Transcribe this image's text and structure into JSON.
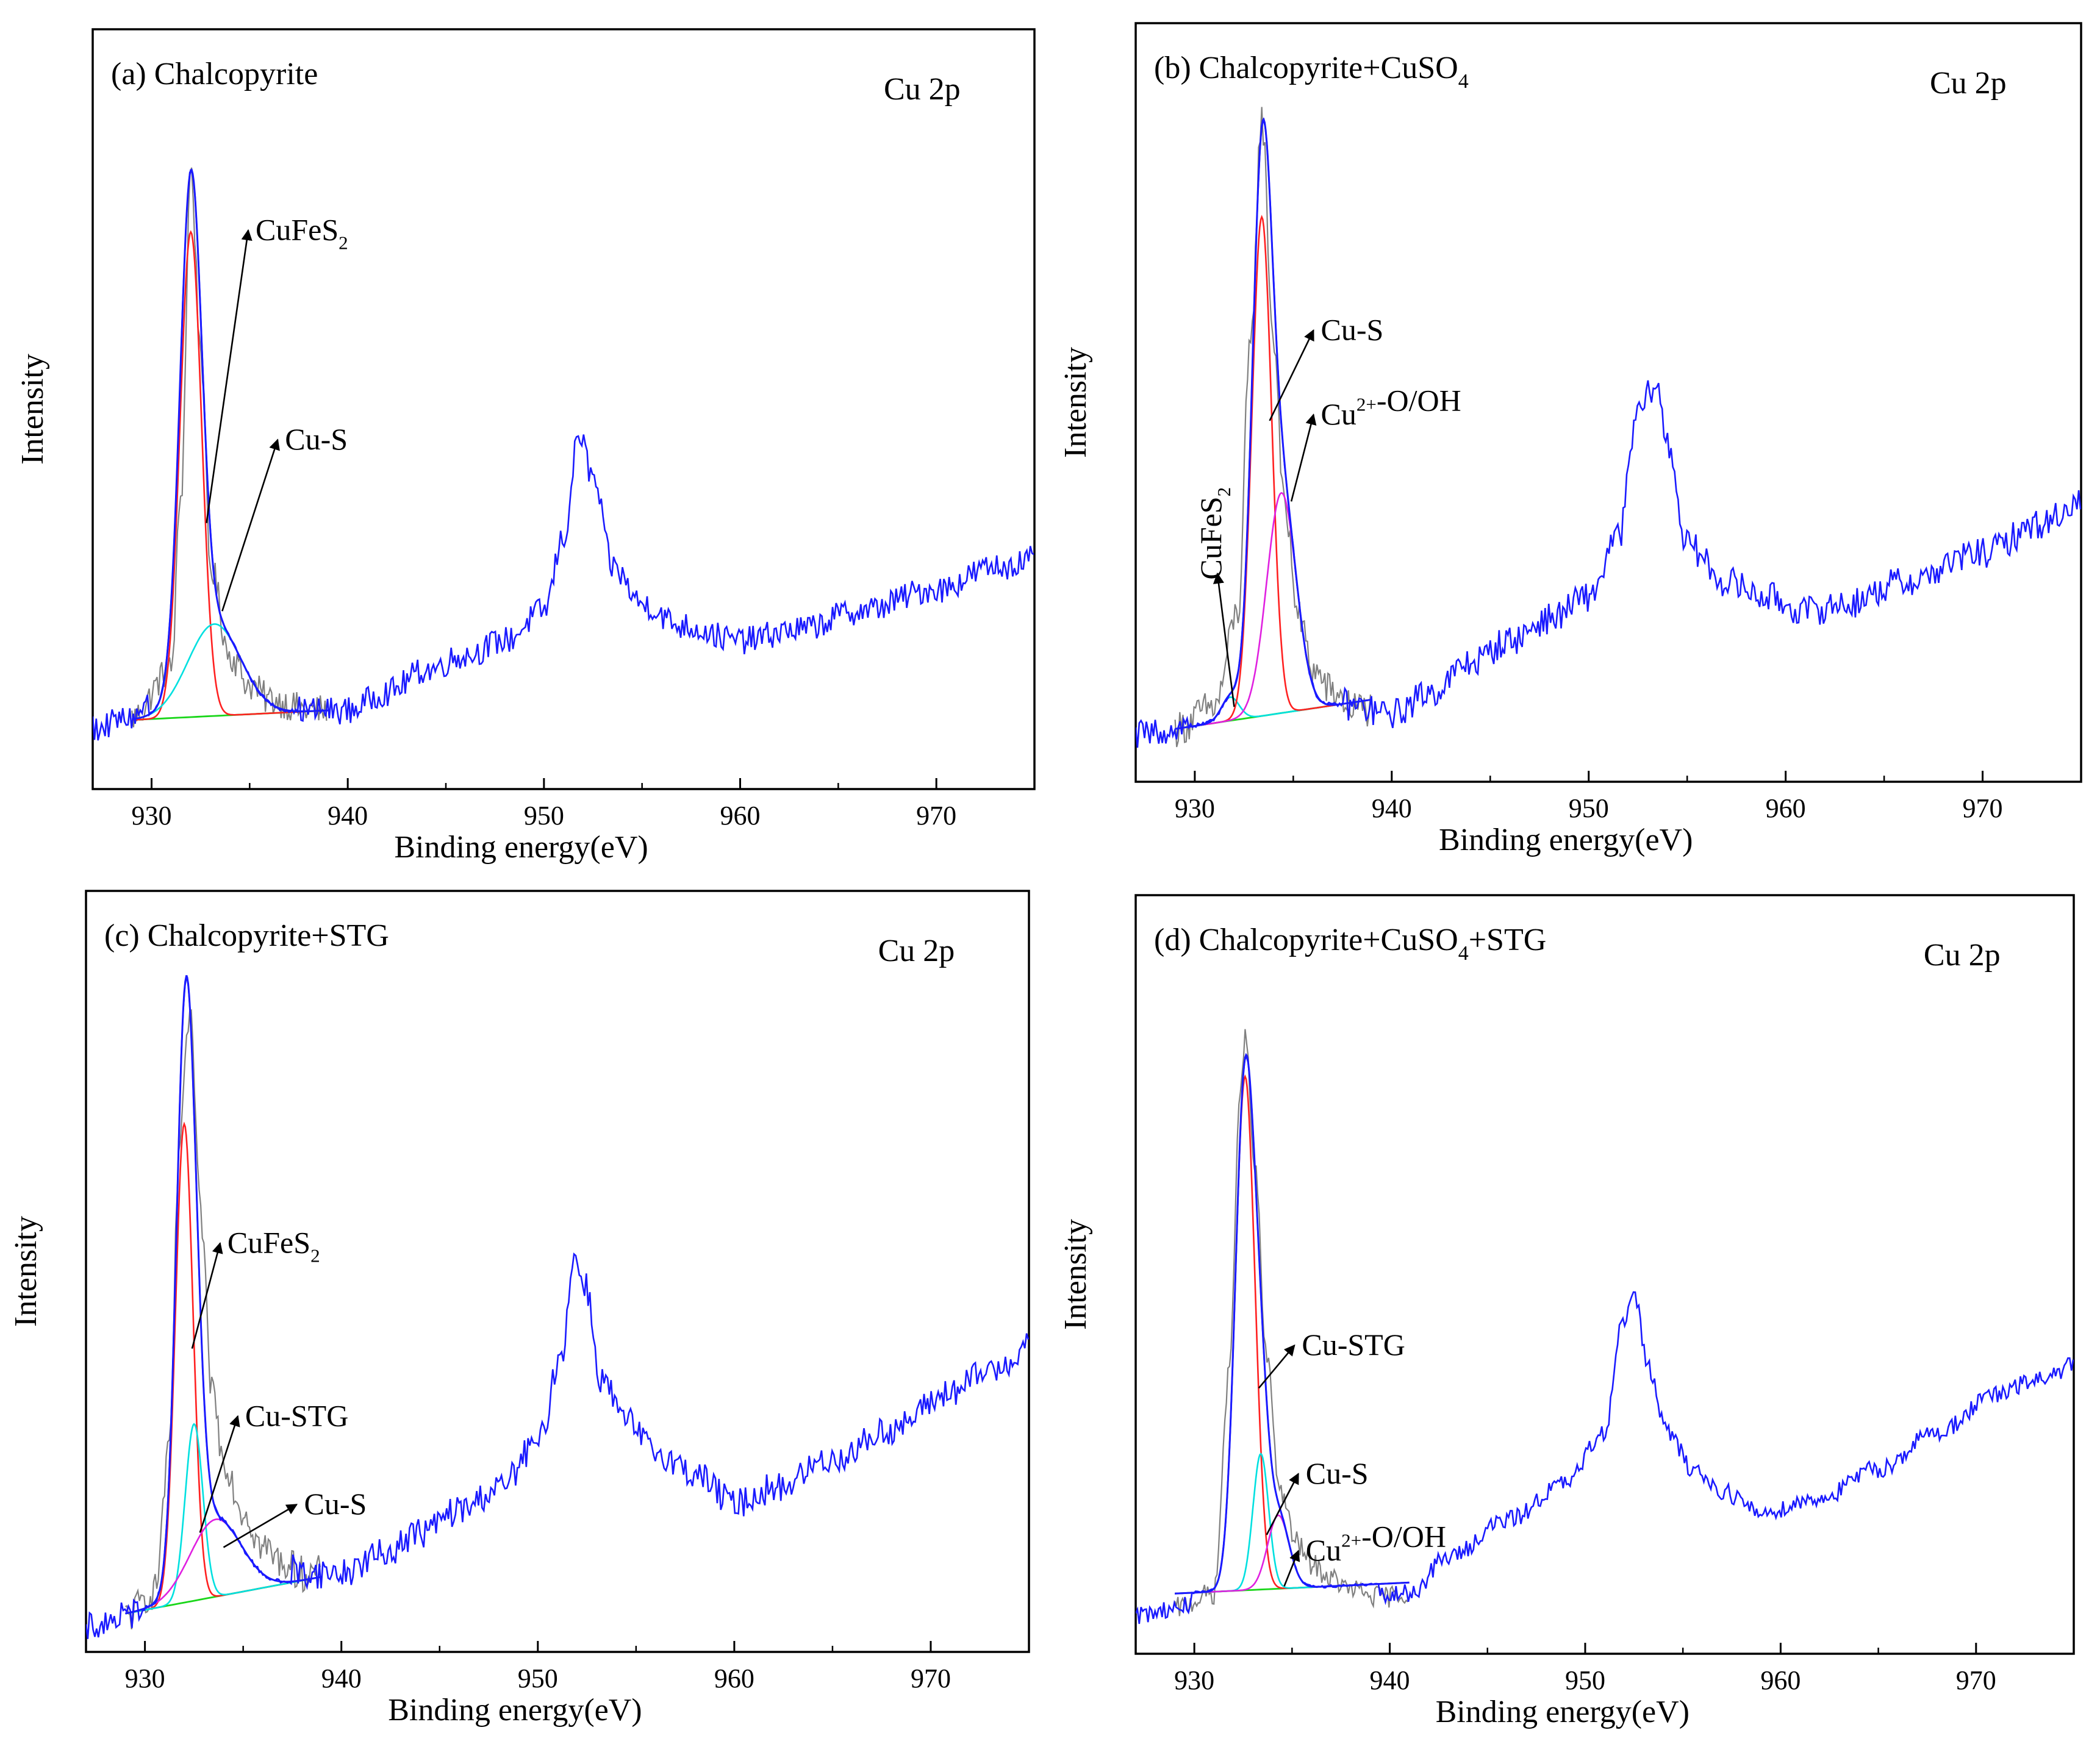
{
  "figure": {
    "colors": {
      "measured": "#1a1aff",
      "fit_envelope": "#1a1aff",
      "raw_residual": "#808080",
      "baseline": "#19d619",
      "red_component": "#ff2020",
      "cyan_component": "#00e0e0",
      "magenta_component": "#e020e0",
      "axes": "#000000"
    }
  },
  "chart_data": [
    {
      "type": "line",
      "panel": "a",
      "title": "(a) Chalcopyrite",
      "title_sub": "",
      "title_suffix": "",
      "corner_label": "Cu 2p",
      "xlabel": "Binding energy(eV)",
      "ylabel": "Intensity",
      "xlim": [
        927,
        975
      ],
      "ylim": [
        0,
        100
      ],
      "xticks": [
        930,
        940,
        950,
        960,
        970
      ],
      "spectrum": {
        "name": "Cu 2p spectrum",
        "x": [
          927,
          929,
          931,
          931.5,
          932,
          932.5,
          933,
          934,
          935,
          936,
          938,
          940,
          942,
          944,
          946,
          948,
          950,
          951,
          951.8,
          952.5,
          953.5,
          955,
          957,
          960,
          963,
          966,
          970,
          973,
          975
        ],
        "y": [
          10,
          11.5,
          18,
          42,
          86,
          62,
          32,
          20,
          16,
          14,
          12.5,
          12.5,
          15,
          18,
          20,
          22,
          26,
          36,
          50,
          44,
          32,
          27,
          24,
          22,
          23.5,
          26,
          29,
          32,
          33
        ],
        "noise": 0.9
      },
      "baseline": {
        "x0": 929,
        "x1": 939,
        "y0": 11.2,
        "y1": 12.5
      },
      "components": [
        {
          "name": "CuFeS2",
          "color": "red",
          "center": 932.0,
          "amp": 66,
          "sigma": 0.55
        },
        {
          "name": "Cu-S",
          "color": "cyan",
          "center": 933.2,
          "amp": 12.5,
          "sigma": 1.35
        }
      ],
      "annotations": [
        {
          "text": "CuFeS",
          "sub": "2",
          "sup": "",
          "rest": "",
          "tx": 935.3,
          "ty": 76.5,
          "ax": 932.8,
          "ay": 38
        },
        {
          "text": "Cu-S",
          "sub": "",
          "sup": "",
          "rest": "",
          "tx": 936.8,
          "ty": 48,
          "ax": 933.6,
          "ay": 26
        }
      ]
    },
    {
      "type": "line",
      "panel": "b",
      "title": "(b) Chalcopyrite+CuSO",
      "title_sub": "4",
      "title_suffix": "",
      "corner_label": "Cu 2p",
      "xlabel": "Binding energy(eV)",
      "ylabel": "Intensity",
      "xlim": [
        927,
        975
      ],
      "ylim": [
        0,
        100
      ],
      "xticks": [
        930,
        940,
        950,
        960,
        970
      ],
      "spectrum": {
        "name": "Cu 2p spectrum",
        "x": [
          927,
          929,
          931,
          932.2,
          932.8,
          933.4,
          934,
          934.6,
          935.3,
          936,
          937,
          938,
          940,
          942,
          944,
          946,
          948,
          950,
          951.5,
          952.5,
          953.4,
          954,
          955,
          957,
          959,
          961,
          963,
          966,
          970,
          973,
          975
        ],
        "y": [
          8,
          9,
          12,
          25,
          60,
          92,
          62,
          38,
          24,
          17,
          14,
          12,
          11,
          14,
          18,
          21,
          24,
          27,
          35,
          52,
          56,
          48,
          34,
          29,
          27,
          25,
          26,
          29,
          33,
          37,
          40
        ],
        "noise": 1.0
      },
      "baseline": {
        "x0": 929,
        "x1": 939,
        "y0": 9,
        "y1": 13
      },
      "components": [
        {
          "name": "CuFeS2",
          "color": "cyan",
          "center": 931.8,
          "amp": 3.2,
          "sigma": 0.45
        },
        {
          "name": "Cu-S",
          "color": "red",
          "center": 933.4,
          "amp": 68,
          "sigma": 0.5
        },
        {
          "name": "Cu2+-O/OH",
          "color": "magenta",
          "center": 934.4,
          "amp": 30,
          "sigma": 0.75
        }
      ],
      "annotations": [
        {
          "text": "Cu-S",
          "sub": "",
          "sup": "",
          "rest": "",
          "tx": 936.4,
          "ty": 62,
          "ax": 933.8,
          "ay": 51
        },
        {
          "text": "Cu",
          "sub": "",
          "sup": "2+",
          "rest": "-O/OH",
          "tx": 936.4,
          "ty": 50.5,
          "ax": 934.9,
          "ay": 40
        },
        {
          "text": "CuFeS",
          "sub": "2",
          "sup": "",
          "rest": "",
          "tx": 930.9,
          "ty": 31,
          "ax": 932.0,
          "ay": 12,
          "rotate": true
        }
      ]
    },
    {
      "type": "line",
      "panel": "c",
      "title": "(c) Chalcopyrite+STG",
      "title_sub": "",
      "title_suffix": "",
      "corner_label": "Cu 2p",
      "xlabel": "Binding energy(eV)",
      "ylabel": "Intensity",
      "xlim": [
        927,
        975
      ],
      "ylim": [
        0,
        100
      ],
      "xticks": [
        930,
        940,
        950,
        960,
        970
      ],
      "spectrum": {
        "name": "Cu 2p spectrum",
        "x": [
          927,
          929,
          930.5,
          931.2,
          931.8,
          932.3,
          932.8,
          933.4,
          934,
          935,
          936,
          937,
          938,
          940,
          942,
          944,
          946,
          948,
          950,
          951.2,
          951.8,
          952.4,
          953.2,
          954.5,
          956,
          958,
          960,
          962,
          965,
          968,
          971,
          973,
          975
        ],
        "y": [
          5,
          6.5,
          10,
          28,
          72,
          89,
          62,
          38,
          28,
          21,
          16,
          14,
          12.5,
          12.5,
          15,
          18,
          21,
          24,
          30,
          42,
          55,
          52,
          39,
          33,
          29,
          26,
          22,
          24,
          28,
          32,
          37,
          40,
          43
        ],
        "noise": 1.0
      },
      "baseline": {
        "x0": 929,
        "x1": 939,
        "y0": 7,
        "y1": 12
      },
      "components": [
        {
          "name": "CuFeS2",
          "color": "red",
          "center": 932.0,
          "amp": 65,
          "sigma": 0.45
        },
        {
          "name": "Cu-STG",
          "color": "cyan",
          "center": 932.5,
          "amp": 24,
          "sigma": 0.45
        },
        {
          "name": "Cu-S",
          "color": "magenta",
          "center": 933.6,
          "amp": 10.5,
          "sigma": 1.3
        }
      ],
      "annotations": [
        {
          "text": "CuFeS",
          "sub": "2",
          "sup": "",
          "rest": "",
          "tx": 934.2,
          "ty": 56,
          "ax": 932.4,
          "ay": 43
        },
        {
          "text": "Cu-STG",
          "sub": "",
          "sup": "",
          "rest": "",
          "tx": 935.1,
          "ty": 32.5,
          "ax": 932.8,
          "ay": 18
        },
        {
          "text": "Cu-S",
          "sub": "",
          "sup": "",
          "rest": "",
          "tx": 938.1,
          "ty": 20.5,
          "ax": 934.0,
          "ay": 16
        }
      ]
    },
    {
      "type": "line",
      "panel": "d",
      "title": "(d) Chalcopyrite+CuSO",
      "title_sub": "4",
      "title_suffix": "+STG",
      "corner_label": "Cu 2p",
      "xlabel": "Binding energy(eV)",
      "ylabel": "Intensity",
      "xlim": [
        927,
        975
      ],
      "ylim": [
        0,
        100
      ],
      "xticks": [
        930,
        940,
        950,
        960,
        970
      ],
      "spectrum": {
        "name": "Cu 2p spectrum",
        "x": [
          927,
          929,
          931,
          931.8,
          932.3,
          932.6,
          933.1,
          933.7,
          934.4,
          935.2,
          936,
          937,
          938,
          939.5,
          941,
          943,
          946,
          949,
          951,
          951.8,
          952.5,
          953.2,
          954.2,
          955.5,
          957,
          959,
          962,
          965,
          968,
          971,
          973,
          975
        ],
        "y": [
          7,
          8,
          10,
          40,
          76,
          86,
          68,
          42,
          24,
          17,
          14,
          12,
          10.5,
          9.5,
          10,
          15,
          20,
          25,
          32,
          46,
          51,
          41,
          32,
          27,
          24,
          21,
          23,
          27,
          32,
          37,
          39,
          41
        ],
        "noise": 0.6
      },
      "baseline": {
        "x0": 929,
        "x1": 941,
        "y0": 10,
        "y1": 11.5
      },
      "components": [
        {
          "name": "Cu-STG",
          "color": "red",
          "center": 932.6,
          "amp": 70,
          "sigma": 0.5
        },
        {
          "name": "Cu-S",
          "color": "cyan",
          "center": 933.4,
          "amp": 18.5,
          "sigma": 0.4
        },
        {
          "name": "Cu2+-O/OH",
          "color": "magenta",
          "center": 934.3,
          "amp": 10,
          "sigma": 0.55
        }
      ],
      "annotations": [
        {
          "text": "Cu-STG",
          "sub": "",
          "sup": "",
          "rest": "",
          "tx": 935.5,
          "ty": 42.5,
          "ax": 933.3,
          "ay": 38
        },
        {
          "text": "Cu-S",
          "sub": "",
          "sup": "",
          "rest": "",
          "tx": 935.7,
          "ty": 25,
          "ax": 933.7,
          "ay": 18
        },
        {
          "text": "Cu",
          "sub": "",
          "sup": "2+",
          "rest": "-O/OH",
          "tx": 935.7,
          "ty": 14.5,
          "ax": 934.6,
          "ay": 11
        }
      ]
    }
  ]
}
